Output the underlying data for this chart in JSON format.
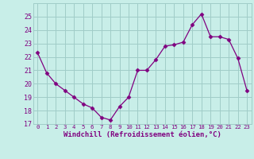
{
  "x": [
    0,
    1,
    2,
    3,
    4,
    5,
    6,
    7,
    8,
    9,
    10,
    11,
    12,
    13,
    14,
    15,
    16,
    17,
    18,
    19,
    20,
    21,
    22,
    23
  ],
  "y": [
    22.3,
    20.8,
    20.0,
    19.5,
    19.0,
    18.5,
    18.2,
    17.5,
    17.3,
    18.3,
    19.0,
    21.0,
    21.0,
    21.8,
    22.8,
    22.9,
    23.1,
    24.4,
    25.2,
    23.5,
    23.5,
    23.3,
    21.9,
    19.5
  ],
  "line_color": "#800080",
  "marker": "D",
  "marker_size": 2.5,
  "bg_color": "#c8eee8",
  "grid_color": "#a0ccc8",
  "tick_color": "#800080",
  "xlabel": "Windchill (Refroidissement éolien,°C)",
  "xlabel_color": "#800080",
  "ylim": [
    17,
    26
  ],
  "yticks": [
    17,
    18,
    19,
    20,
    21,
    22,
    23,
    24,
    25
  ],
  "xtick_labels": [
    "0",
    "1",
    "2",
    "3",
    "4",
    "5",
    "6",
    "7",
    "8",
    "9",
    "10",
    "11",
    "12",
    "13",
    "14",
    "15",
    "16",
    "17",
    "18",
    "19",
    "20",
    "21",
    "22",
    "23"
  ],
  "font_family": "monospace",
  "ylabel_fontsize": 6.0,
  "xlabel_fontsize": 6.5,
  "xtick_fontsize": 5.2,
  "ytick_fontsize": 6.0
}
